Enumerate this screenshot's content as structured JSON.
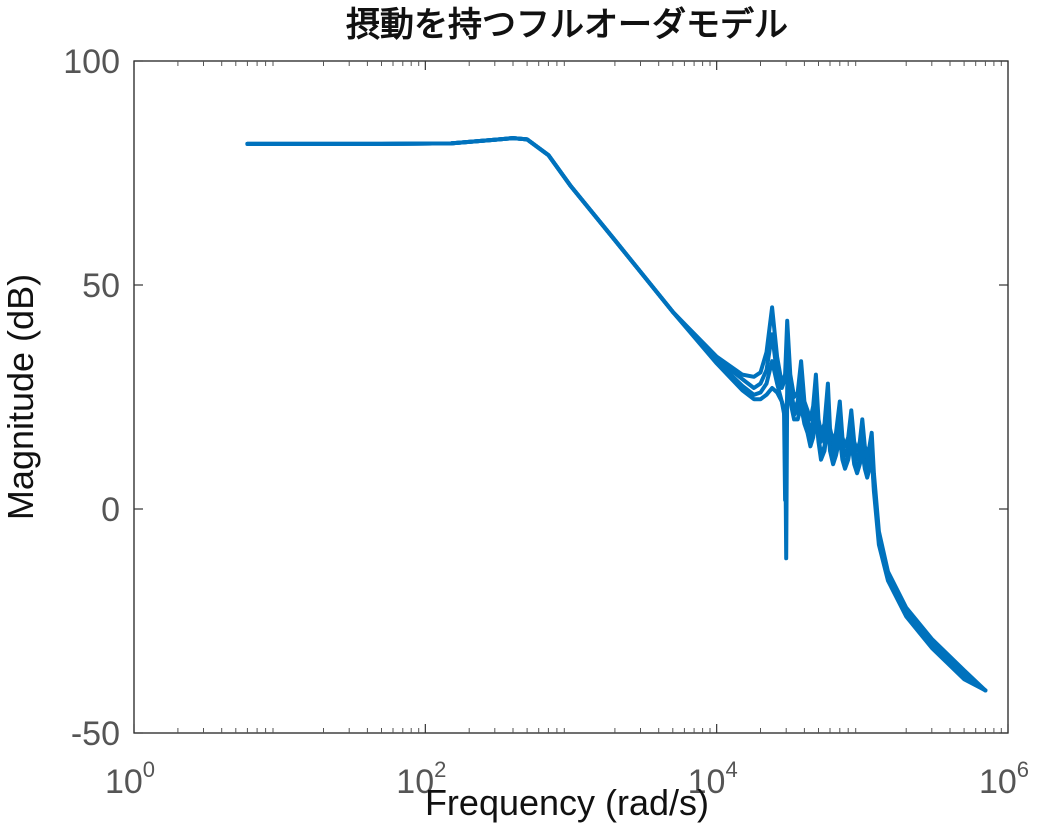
{
  "chart_data": {
    "type": "line",
    "title": "摂動を持つフルオーダモデル",
    "xlabel": "Frequency  (rad/s)",
    "ylabel": "Magnitude (dB)",
    "x_scale": "log",
    "xlim": [
      1,
      1000000
    ],
    "ylim": [
      -50,
      100
    ],
    "x_ticks": [
      {
        "value": 1,
        "base": "10",
        "exp": "0"
      },
      {
        "value": 100,
        "base": "10",
        "exp": "2"
      },
      {
        "value": 10000,
        "base": "10",
        "exp": "4"
      },
      {
        "value": 1000000,
        "base": "10",
        "exp": "6"
      }
    ],
    "y_ticks": [
      {
        "value": 100,
        "label": "100"
      },
      {
        "value": 50,
        "label": "50"
      },
      {
        "value": 0,
        "label": "0"
      },
      {
        "value": -50,
        "label": "-50"
      }
    ],
    "grid": false,
    "color": "#0072BD",
    "series": [
      {
        "x": [
          6,
          50,
          150,
          300,
          400,
          500,
          700,
          1000,
          2000,
          5000,
          10000,
          15000,
          18000,
          20000,
          22000,
          24000,
          26000,
          28000,
          29500,
          30500,
          32000,
          34000,
          36000,
          38000,
          40000,
          42000,
          44000,
          46000,
          48000,
          50000,
          52000,
          55000,
          58000,
          60000,
          63000,
          66000,
          70000,
          73000,
          76000,
          80000,
          84000,
          88000,
          92000,
          96000,
          100000,
          104000,
          108000,
          112000,
          116000,
          120000,
          130000,
          150000,
          200000,
          300000,
          500000,
          700000
        ],
        "y": [
          81.5,
          81.5,
          81.6,
          82.4,
          82.8,
          82.5,
          79,
          72,
          60,
          44,
          34,
          30,
          29.5,
          30.5,
          35,
          45,
          34,
          28,
          30,
          42,
          30,
          25,
          26,
          33,
          24,
          22,
          20,
          23,
          30,
          20,
          17,
          19,
          28,
          18,
          15,
          17,
          24,
          16,
          14,
          16,
          22,
          15,
          13,
          15,
          20,
          14,
          12,
          14,
          17,
          8,
          -5,
          -14,
          -22,
          -29,
          -36,
          -40.5
        ]
      },
      {
        "x": [
          6,
          50,
          150,
          300,
          400,
          500,
          700,
          1000,
          2000,
          5000,
          10000,
          15000,
          18000,
          20000,
          22000,
          24000,
          26000,
          28000,
          29500,
          30500,
          32000,
          34000,
          36000,
          38000,
          40000,
          42000,
          44000,
          46000,
          48000,
          50000,
          52000,
          55000,
          58000,
          60000,
          63000,
          66000,
          70000,
          73000,
          76000,
          80000,
          84000,
          88000,
          92000,
          96000,
          100000,
          104000,
          108000,
          112000,
          116000,
          120000,
          130000,
          150000,
          200000,
          300000,
          500000,
          700000
        ],
        "y": [
          81.5,
          81.5,
          81.6,
          82.4,
          82.8,
          82.5,
          79,
          72,
          60,
          44,
          33.5,
          29,
          27,
          28,
          31,
          39,
          30,
          27,
          29,
          37,
          28,
          22,
          24,
          30,
          22,
          20,
          17,
          20,
          27,
          18,
          15,
          17,
          25,
          16,
          13,
          15,
          21,
          14,
          12,
          14,
          19,
          13,
          11,
          13,
          17,
          12,
          10,
          12,
          15,
          6,
          -6,
          -15,
          -23,
          -30,
          -37,
          -40.5
        ]
      },
      {
        "x": [
          6,
          50,
          150,
          300,
          400,
          500,
          700,
          1000,
          2000,
          5000,
          10000,
          15000,
          18000,
          20000,
          22000,
          24000,
          26000,
          28000,
          29500,
          30000,
          30500,
          31000,
          32000,
          34000,
          36000,
          38000,
          40000,
          42000,
          44000,
          46000,
          48000,
          50000,
          52000,
          55000,
          58000,
          60000,
          63000,
          66000,
          70000,
          73000,
          76000,
          80000,
          84000,
          88000,
          92000,
          96000,
          100000,
          104000,
          108000,
          112000,
          116000,
          120000,
          130000,
          150000,
          200000,
          300000,
          500000,
          700000
        ],
        "y": [
          81.5,
          81.5,
          81.6,
          82.4,
          82.8,
          82.5,
          79,
          72,
          60,
          44,
          33,
          27.5,
          25.5,
          26,
          28,
          33,
          28,
          24,
          20,
          -11,
          27,
          32,
          25,
          21,
          22,
          26,
          20,
          18,
          15,
          17,
          23,
          16,
          12,
          14,
          21,
          14,
          11,
          13,
          18,
          12,
          10,
          12,
          16,
          11,
          9,
          11,
          14,
          10,
          8,
          10,
          13,
          5,
          -7,
          -15.5,
          -23.5,
          -30.5,
          -37.5,
          -40.5
        ]
      },
      {
        "x": [
          6,
          50,
          150,
          300,
          400,
          500,
          700,
          1000,
          2000,
          5000,
          10000,
          15000,
          18000,
          20000,
          22000,
          24000,
          26000,
          28000,
          29000,
          29500,
          30000,
          31000,
          32000,
          34000,
          36000,
          38000,
          40000,
          42000,
          44000,
          46000,
          48000,
          50000,
          52000,
          55000,
          58000,
          60000,
          63000,
          66000,
          70000,
          73000,
          76000,
          80000,
          84000,
          88000,
          92000,
          96000,
          100000,
          104000,
          108000,
          112000,
          116000,
          120000,
          130000,
          150000,
          200000,
          300000,
          500000,
          700000
        ],
        "y": [
          81.5,
          81.5,
          81.6,
          82.4,
          82.8,
          82.5,
          79,
          72,
          60,
          44,
          32.5,
          26.5,
          24.5,
          24.5,
          25.5,
          27,
          26,
          24,
          22,
          2,
          22,
          28,
          24,
          20,
          20,
          23,
          19,
          17,
          14,
          16,
          21,
          15,
          11,
          13,
          19,
          13,
          10,
          12,
          16,
          11,
          9,
          11,
          15,
          10,
          8,
          10,
          13,
          9,
          7,
          9,
          12,
          4,
          -8,
          -16,
          -24,
          -31,
          -38,
          -40.5
        ]
      }
    ]
  }
}
